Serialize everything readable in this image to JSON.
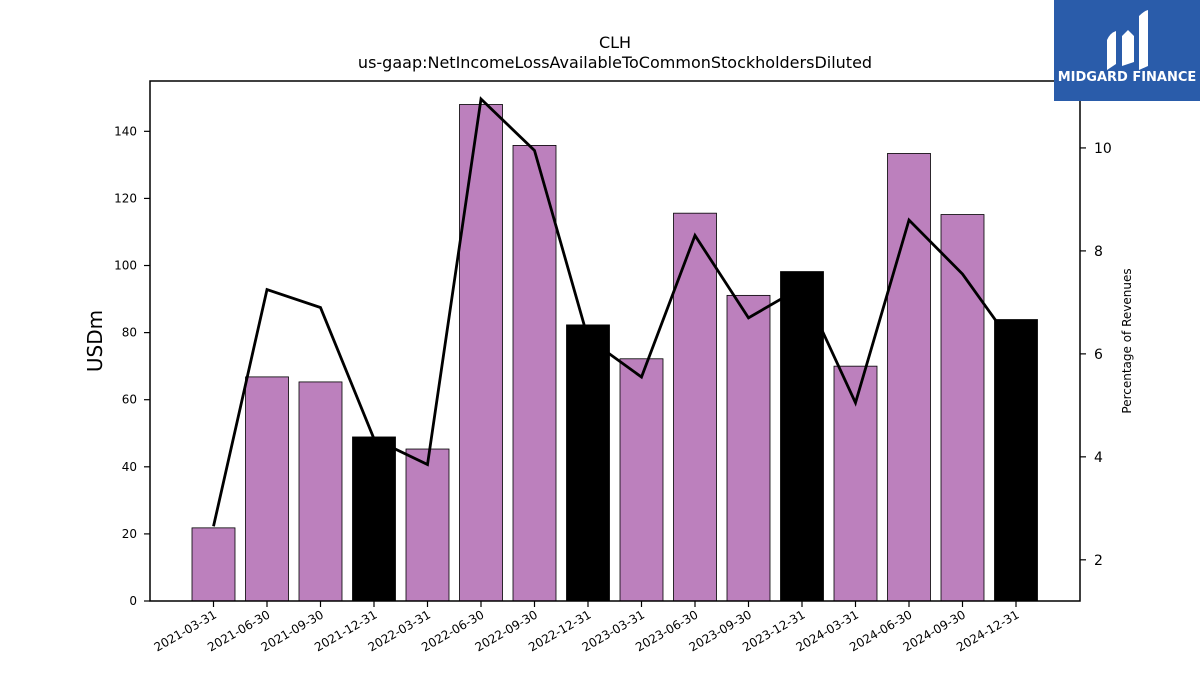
{
  "chart_data": {
    "type": "bar",
    "title": "CLH",
    "subtitle": "us-gaap:NetIncomeLossAvailableToCommonStockholdersDiluted",
    "ylabel": "USDm",
    "ylabel_right": "Percentage of Revenues",
    "ylim": [
      0,
      155
    ],
    "ylim_right": [
      1.2,
      11.3
    ],
    "yticks": [
      0,
      20,
      40,
      60,
      80,
      100,
      120,
      140
    ],
    "yticks_right": [
      2,
      4,
      6,
      8,
      10
    ],
    "categories": [
      "2021-03-31",
      "2021-06-30",
      "2021-09-30",
      "2021-12-31",
      "2022-03-31",
      "2022-06-30",
      "2022-09-30",
      "2022-12-31",
      "2023-03-31",
      "2023-06-30",
      "2023-09-30",
      "2023-12-31",
      "2024-03-31",
      "2024-06-30",
      "2024-09-30",
      "2024-12-31"
    ],
    "series": [
      {
        "type": "bar",
        "values": [
          21.8,
          66.8,
          65.3,
          48.9,
          45.3,
          148.0,
          135.8,
          82.3,
          72.2,
          115.6,
          91.1,
          98.2,
          70.0,
          133.4,
          115.2,
          83.9
        ],
        "colors": [
          "#bc80bd",
          "#bc80bd",
          "#bc80bd",
          "#000000",
          "#bc80bd",
          "#bc80bd",
          "#bc80bd",
          "#000000",
          "#bc80bd",
          "#bc80bd",
          "#bc80bd",
          "#000000",
          "#bc80bd",
          "#bc80bd",
          "#bc80bd",
          "#000000"
        ]
      },
      {
        "type": "line",
        "axis": "right",
        "values": [
          2.65,
          7.25,
          6.9,
          4.35,
          3.85,
          10.95,
          9.95,
          6.3,
          5.55,
          8.3,
          6.7,
          7.3,
          5.05,
          8.6,
          7.55,
          6.1
        ],
        "color": "#000000"
      }
    ],
    "grid": false
  },
  "logo": {
    "text": "MIDGARD FINANCE",
    "color": "#2a5caa"
  }
}
